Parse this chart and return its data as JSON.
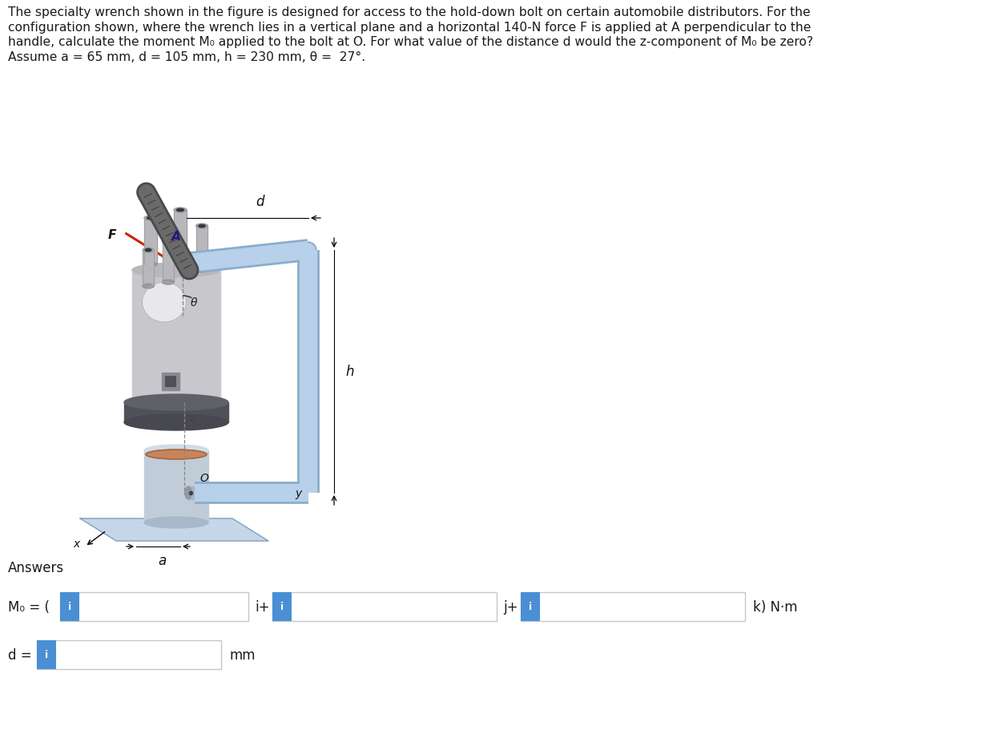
{
  "background_color": "#ffffff",
  "text_color": "#1a1a1a",
  "title_lines": [
    "The specialty wrench shown in the figure is designed for access to the hold-down bolt on certain automobile distributors. For the",
    "configuration shown, where the wrench lies in a vertical plane and a horizontal 140-N force F is applied at A perpendicular to the",
    "handle, calculate the moment M₀ applied to the bolt at O. For what value of the distance d would the z-component of M₀ be zero?",
    "Assume a = 65 mm, d = 105 mm, h = 230 mm, θ =  27°."
  ],
  "answer_label": "Answers",
  "mo_label": "M₀ = (",
  "i_label": "i+",
  "j_label": "j+",
  "k_label": "k) N·m",
  "d_label": "d =",
  "mm_label": "mm",
  "info_fill": "#4a8fd4",
  "info_text": "i",
  "tube_color": "#b8d0ea",
  "tube_edge": "#8aadcc",
  "grip_dark": "#4a4a4a",
  "grip_mid": "#6a6a6a",
  "dist_gray": "#c8c8c8",
  "dist_dark": "#686868",
  "dist_mid": "#a8a8a8",
  "copper_color": "#c8855a",
  "base_color": "#b0c8e0",
  "arrow_color": "#cc2200"
}
